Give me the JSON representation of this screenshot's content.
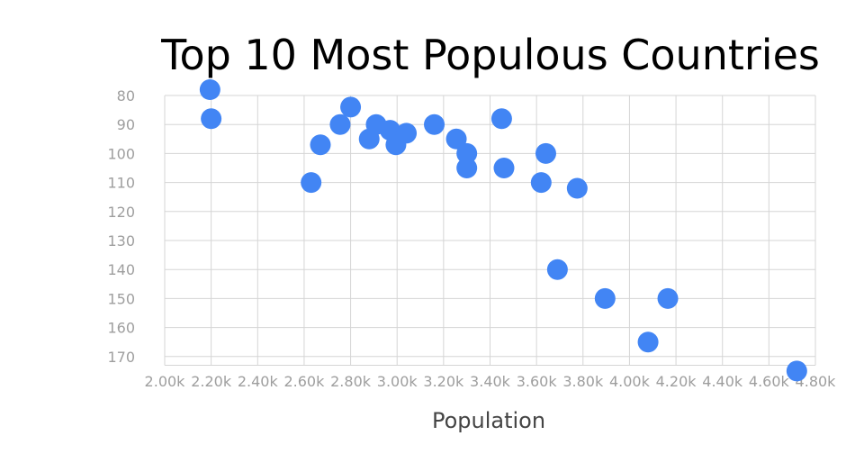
{
  "chart_data": {
    "type": "scatter",
    "title": "Top 10 Most Populous Countries",
    "xlabel": "Population",
    "ylabel": "",
    "xlim": [
      2000,
      4800
    ],
    "ylim": [
      173,
      80
    ],
    "y_reversed": true,
    "grid": true,
    "legend": "none",
    "x_ticks": [
      2000,
      2200,
      2400,
      2600,
      2800,
      3000,
      3200,
      3400,
      3600,
      3800,
      4000,
      4200,
      4400,
      4600,
      4800
    ],
    "x_tick_labels": [
      "2.00k",
      "2.20k",
      "2.40k",
      "2.60k",
      "2.80k",
      "3.00k",
      "3.20k",
      "3.40k",
      "3.60k",
      "3.80k",
      "4.00k",
      "4.20k",
      "4.40k",
      "4.60k",
      "4.80k"
    ],
    "y_ticks": [
      80,
      90,
      100,
      110,
      120,
      130,
      140,
      150,
      160,
      170
    ],
    "y_tick_labels": [
      "80",
      "90",
      "100",
      "110",
      "120",
      "130",
      "140",
      "150",
      "160",
      "170"
    ],
    "marker_color": "#4285f4",
    "points": [
      {
        "x": 2195,
        "y": 78
      },
      {
        "x": 2200,
        "y": 88
      },
      {
        "x": 2630,
        "y": 110
      },
      {
        "x": 2670,
        "y": 97
      },
      {
        "x": 2755,
        "y": 90
      },
      {
        "x": 2800,
        "y": 84
      },
      {
        "x": 2880,
        "y": 95
      },
      {
        "x": 2910,
        "y": 90
      },
      {
        "x": 2970,
        "y": 92
      },
      {
        "x": 2995,
        "y": 97
      },
      {
        "x": 3040,
        "y": 93
      },
      {
        "x": 3160,
        "y": 90
      },
      {
        "x": 3255,
        "y": 95
      },
      {
        "x": 3300,
        "y": 100
      },
      {
        "x": 3300,
        "y": 105
      },
      {
        "x": 3450,
        "y": 88
      },
      {
        "x": 3460,
        "y": 105
      },
      {
        "x": 3620,
        "y": 110
      },
      {
        "x": 3640,
        "y": 100
      },
      {
        "x": 3690,
        "y": 140
      },
      {
        "x": 3775,
        "y": 112
      },
      {
        "x": 3895,
        "y": 150
      },
      {
        "x": 4080,
        "y": 165
      },
      {
        "x": 4165,
        "y": 150
      },
      {
        "x": 4720,
        "y": 175
      }
    ]
  }
}
